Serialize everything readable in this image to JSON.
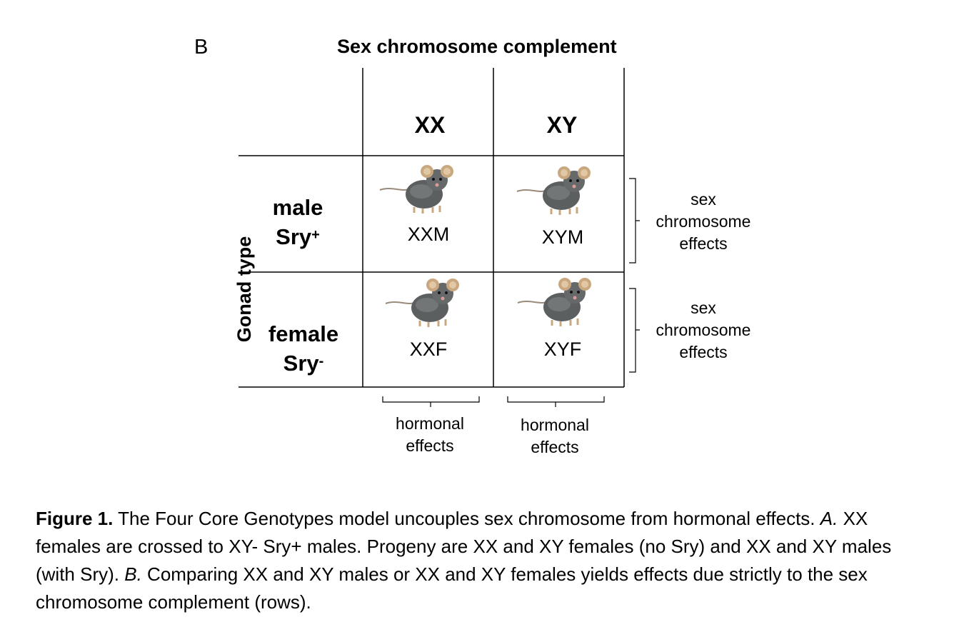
{
  "panel_label": "B",
  "column_title": "Sex chromosome complement",
  "row_title": "Gonad type",
  "columns": [
    "XX",
    "XY"
  ],
  "rows": [
    {
      "line1": "male",
      "line2": "Sry",
      "sup": "+"
    },
    {
      "line1": "female",
      "line2": "Sry",
      "sup": "-"
    }
  ],
  "cells": [
    "XXM",
    "XYM",
    "XXF",
    "XYF"
  ],
  "row_effects": [
    {
      "line1": "sex",
      "line2": "chromosome",
      "line3": "effects"
    },
    {
      "line1": "sex",
      "line2": "chromosome",
      "line3": "effects"
    }
  ],
  "col_effects": [
    {
      "line1": "hormonal",
      "line2": "effects"
    },
    {
      "line1": "hormonal",
      "line2": "effects"
    }
  ],
  "icon": "mouse-icon",
  "caption": {
    "bold": "Figure 1.",
    "s1": " The Four Core Genotypes model uncouples sex chromosome from hormonal effects. ",
    "a_label": "A.",
    "s2": " XX females are crossed to XY- Sry+ males. Progeny are XX and XY females (no Sry) and XX and XY males (with Sry). ",
    "b_label": "B.",
    "s3": " Comparing XX and XY males or XX and XY females yields effects due strictly to the sex chromosome complement (rows)."
  }
}
